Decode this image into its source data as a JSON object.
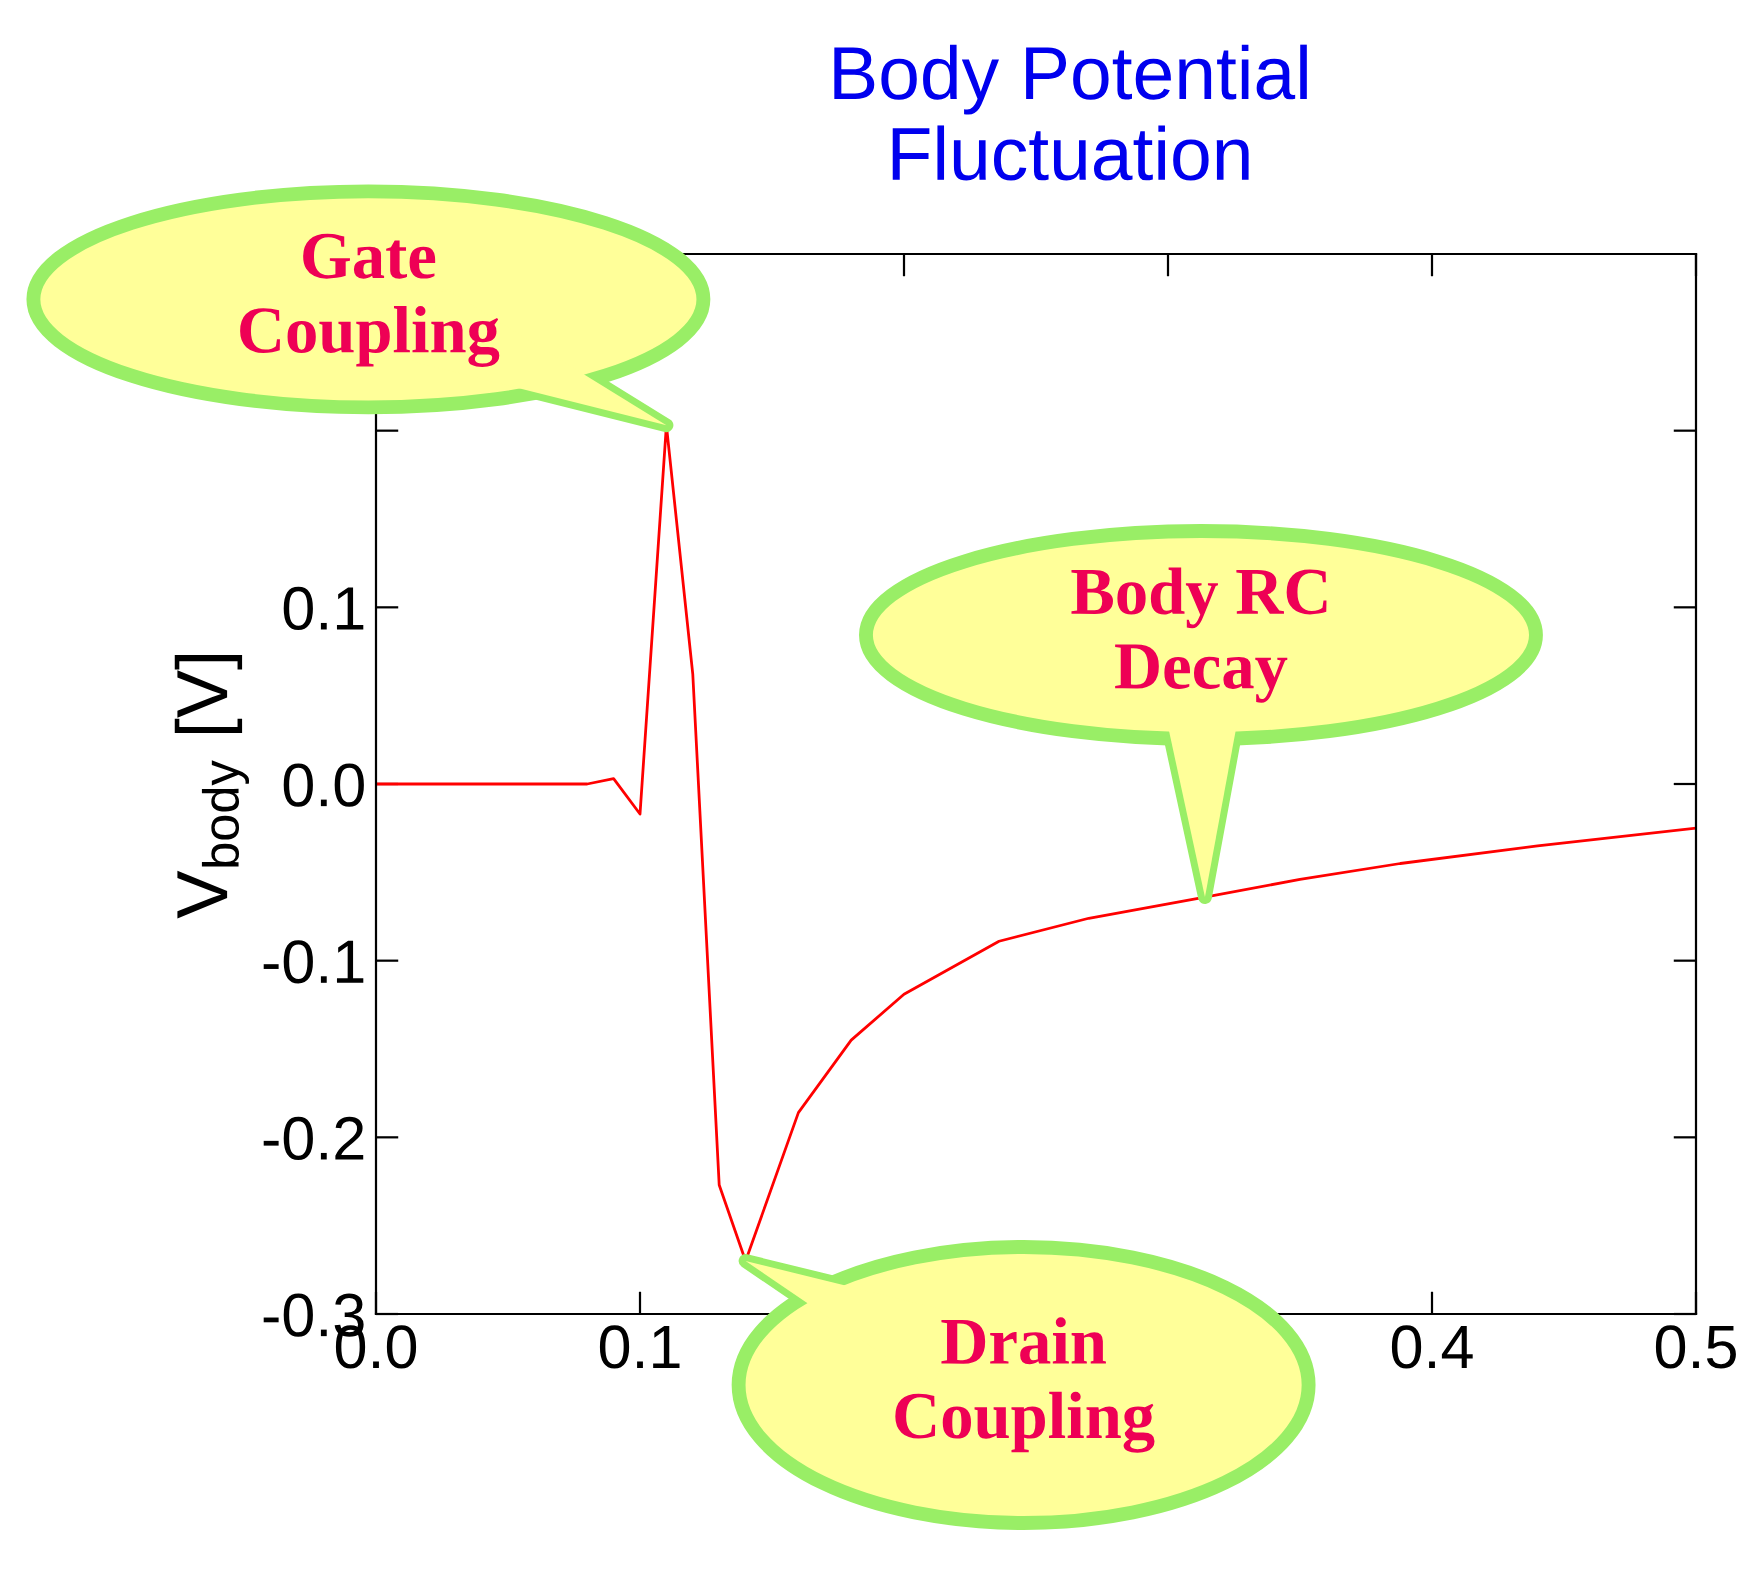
{
  "chart_data": {
    "type": "line",
    "title": "Body Potential\nFluctuation",
    "ylabel": "V$_{body}$ [V]",
    "x": [
      0,
      0.08,
      0.09,
      0.1,
      0.11,
      0.12,
      0.13,
      0.14,
      0.16,
      0.18,
      0.2,
      0.236,
      0.27,
      0.314,
      0.35,
      0.388,
      0.44,
      0.5
    ],
    "series": [
      {
        "color": "#ff0000",
        "values": [
          0,
          0,
          0.003,
          -0.017,
          0.203,
          0.062,
          -0.227,
          -0.27,
          -0.186,
          -0.145,
          -0.119,
          -0.089,
          -0.076,
          -0.064,
          -0.054,
          -0.045,
          -0.035,
          -0.025
        ]
      }
    ],
    "xlim": [
      0,
      0.5
    ],
    "xticks": [
      {
        "value": 0,
        "label": "0.0"
      },
      0.1,
      {
        "value": 0.2,
        "label": null
      },
      {
        "value": 0.3,
        "label": null
      },
      0.4,
      0.5
    ],
    "ylim": [
      -0.3,
      0.3
    ],
    "yticks": [
      -0.3,
      -0.2,
      -0.1,
      {
        "value": 0,
        "label": "0.0"
      },
      0.1,
      {
        "value": 0.2,
        "label": null
      }
    ],
    "grid": false,
    "marker": "none",
    "line_style": "solid",
    "annotations": [
      {
        "text": "Gate\nCoupling",
        "x": 0.11,
        "y": 0.203
      },
      {
        "text": "Body RC\nDecay",
        "x": 0.314,
        "y": -0.064
      },
      {
        "text": "Drain\nCoupling",
        "x": 0.14,
        "y": -0.27
      }
    ]
  }
}
